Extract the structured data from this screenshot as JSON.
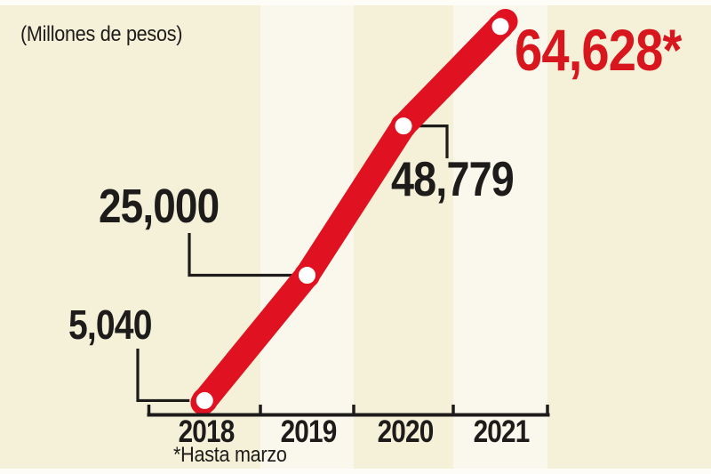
{
  "header": {
    "title": "(Millones de pesos)"
  },
  "footnote": "*Hasta marzo",
  "chart_data": {
    "type": "line",
    "title": "(Millones de pesos)",
    "categories": [
      "2018",
      "2019",
      "2020",
      "2021"
    ],
    "values": [
      5040,
      25000,
      48779,
      64628
    ],
    "point_labels": [
      "5,040",
      "25,000",
      "48,779",
      "64,628*"
    ],
    "footnote": "*Hasta marzo",
    "ylim": [
      0,
      68000
    ],
    "grid": false,
    "legend": "none",
    "highlighted_columns": [
      "2019",
      "2021"
    ]
  },
  "colors": {
    "background": "#f5f0d8",
    "column_highlight": "#faf8ec",
    "edge_strip": "#fdfcf6",
    "trend_line": "#e01222",
    "highlight_value_text": "#d8161e",
    "ink": "#1d1c1a",
    "marker_fill": "#ffffff"
  }
}
